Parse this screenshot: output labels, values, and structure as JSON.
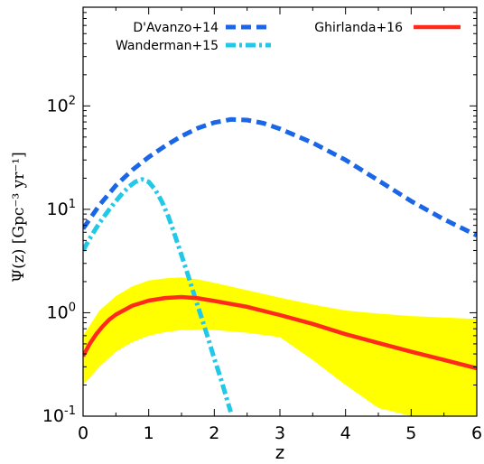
{
  "chart_data": {
    "type": "line",
    "xlabel": "z",
    "ylabel": "Ψ(z) [Gpc⁻³ yr⁻¹]",
    "xlim": [
      0,
      6
    ],
    "ylim": [
      0.1,
      900
    ],
    "yscale": "log",
    "x_ticks": [
      "0",
      "1",
      "2",
      "3",
      "4",
      "5",
      "6"
    ],
    "y_ticks": [
      {
        "value": 0.1,
        "base": "10",
        "exp": "-1"
      },
      {
        "value": 1,
        "base": "10",
        "exp": "0"
      },
      {
        "value": 10,
        "base": "10",
        "exp": "1"
      },
      {
        "value": 100,
        "base": "10",
        "exp": "2"
      }
    ],
    "grid": false,
    "legend_placement": "top",
    "series": [
      {
        "name": "D'Avanzo+14",
        "color": "#1a66e6",
        "style": "dashed",
        "x": [
          0,
          0.25,
          0.5,
          0.75,
          1.0,
          1.25,
          1.5,
          1.75,
          2.0,
          2.25,
          2.5,
          2.75,
          3.0,
          3.5,
          4.0,
          4.5,
          5.0,
          5.5,
          6.0
        ],
        "y": [
          6.5,
          11,
          17,
          24,
          32,
          41,
          51,
          61,
          69,
          74,
          73,
          68,
          60,
          44,
          30,
          19,
          12,
          8,
          5.6
        ]
      },
      {
        "name": "Wanderman+15",
        "color": "#22c8e8",
        "style": "dashdot",
        "x": [
          0,
          0.1,
          0.2,
          0.3,
          0.4,
          0.5,
          0.6,
          0.7,
          0.8,
          0.9,
          1.0,
          1.1,
          1.2,
          1.3,
          1.4,
          1.5,
          1.6,
          1.7,
          1.8,
          1.9,
          2.0,
          2.1,
          2.2,
          2.25
        ],
        "y": [
          4.0,
          5.2,
          6.6,
          8.2,
          10,
          12,
          14.3,
          16.6,
          18.5,
          19.5,
          18.4,
          15.5,
          11.9,
          8.5,
          5.6,
          3.6,
          2.3,
          1.45,
          0.92,
          0.58,
          0.36,
          0.23,
          0.14,
          0.11
        ]
      },
      {
        "name": "Ghirlanda+16",
        "color": "#ff2a1a",
        "style": "solid",
        "x": [
          0,
          0.1,
          0.2,
          0.3,
          0.4,
          0.5,
          0.75,
          1.0,
          1.25,
          1.5,
          1.75,
          2.0,
          2.5,
          3.0,
          3.5,
          4.0,
          4.5,
          5.0,
          5.5,
          6.0
        ],
        "y": [
          0.38,
          0.5,
          0.62,
          0.74,
          0.86,
          0.96,
          1.17,
          1.31,
          1.39,
          1.42,
          1.38,
          1.3,
          1.14,
          0.95,
          0.78,
          0.62,
          0.51,
          0.42,
          0.35,
          0.29
        ]
      }
    ],
    "band": {
      "color": "#ffff00",
      "x": [
        0,
        0.25,
        0.5,
        0.75,
        1.0,
        1.25,
        1.5,
        1.75,
        2.0,
        2.5,
        3.0,
        3.5,
        4.0,
        4.5,
        5.0,
        5.5,
        6.0
      ],
      "upper": [
        0.6,
        1.05,
        1.45,
        1.8,
        2.05,
        2.15,
        2.2,
        2.1,
        1.95,
        1.65,
        1.4,
        1.2,
        1.05,
        0.98,
        0.93,
        0.9,
        0.87
      ],
      "lower": [
        0.2,
        0.3,
        0.42,
        0.52,
        0.6,
        0.65,
        0.68,
        0.69,
        0.68,
        0.64,
        0.58,
        0.35,
        0.2,
        0.12,
        0.1,
        0.1,
        0.1
      ]
    }
  }
}
